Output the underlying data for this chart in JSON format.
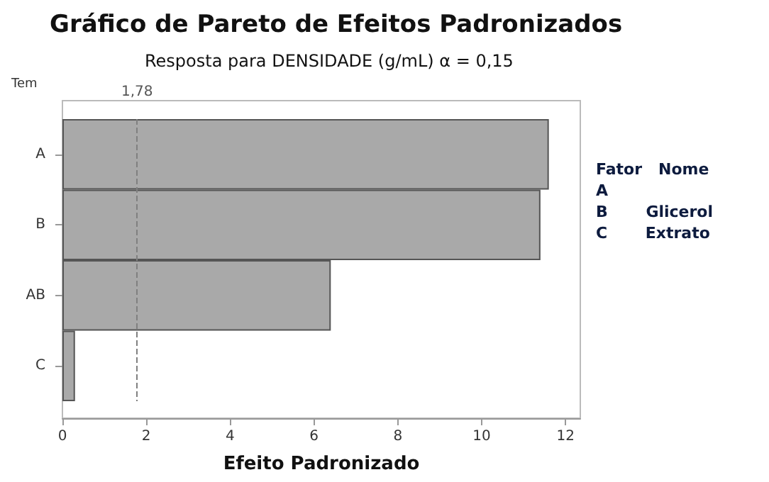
{
  "chart_data": {
    "type": "bar",
    "orientation": "horizontal",
    "title": "Gráfico de Pareto de Efeitos Padronizados",
    "subtitle": "Resposta para DENSIDADE (g/mL) α = 0,15",
    "xlabel": "Efeito Padronizado",
    "ylabel": "Tem",
    "categories": [
      "A",
      "B",
      "AB",
      "C"
    ],
    "values": [
      11.6,
      11.4,
      6.4,
      0.3
    ],
    "color": "#a9a9a9",
    "xlim": [
      0,
      12.35
    ],
    "xticks": [
      0,
      2,
      4,
      6,
      8,
      10,
      12
    ],
    "grid": false,
    "ref_lines": [
      {
        "axis": "x",
        "value": 1.78,
        "label": "1,78",
        "color": "#808080",
        "line_style": "dashed"
      }
    ],
    "annotations": [
      "Fator   Nome",
      "A",
      "B       Glicerol",
      "C       Extrato"
    ]
  }
}
